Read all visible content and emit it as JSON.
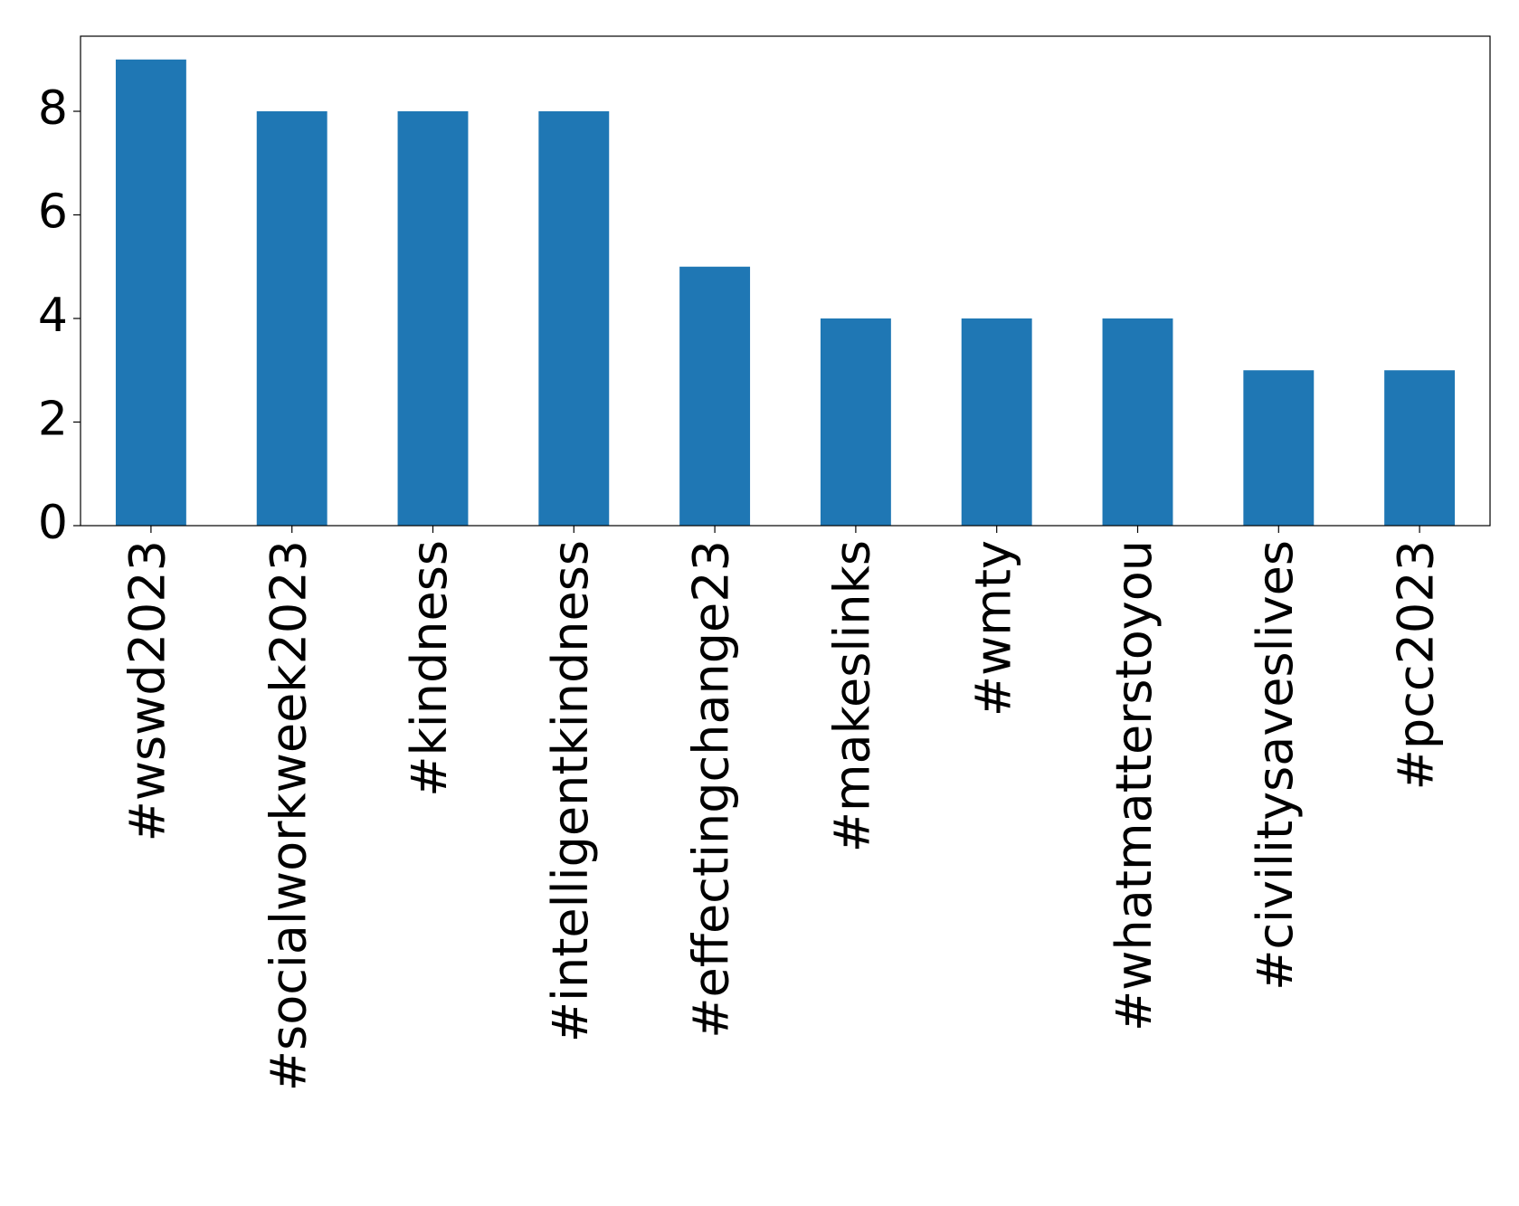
{
  "chart_data": {
    "type": "bar",
    "categories": [
      "#wswd2023",
      "#socialworkweek2023",
      "#kindness",
      "#intelligentkindness",
      "#effectingchange23",
      "#makeslinks",
      "#wmty",
      "#whatmatterstoyou",
      "#civilitysaveslives",
      "#pcc2023"
    ],
    "values": [
      9,
      8,
      8,
      8,
      5,
      4,
      4,
      4,
      3,
      3
    ],
    "color": "#1f77b4",
    "ylim": [
      0,
      9.45
    ],
    "yticks": [
      0,
      2,
      4,
      6,
      8
    ],
    "grid": false
  }
}
